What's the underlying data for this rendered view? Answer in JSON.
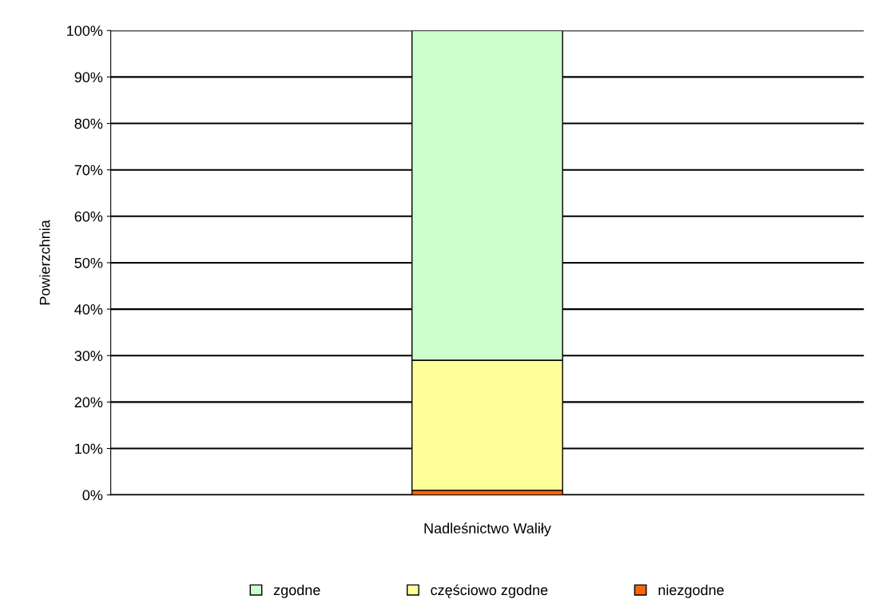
{
  "chart_data": {
    "type": "bar",
    "stacked": true,
    "ylabel": "Powierzchnia",
    "categories": [
      "Nadleśnictwo Waliły"
    ],
    "series": [
      {
        "name": "niezgodne",
        "color": "#ff6600",
        "values": [
          1
        ]
      },
      {
        "name": "częściowo zgodne",
        "color": "#ffff99",
        "values": [
          28
        ]
      },
      {
        "name": "zgodne",
        "color": "#ccffcc",
        "values": [
          71
        ]
      }
    ],
    "ylim": [
      0,
      100
    ],
    "yticks": [
      {
        "value": 0,
        "label": "0%"
      },
      {
        "value": 10,
        "label": "10%"
      },
      {
        "value": 20,
        "label": "20%"
      },
      {
        "value": 30,
        "label": "30%"
      },
      {
        "value": 40,
        "label": "40%"
      },
      {
        "value": 50,
        "label": "50%"
      },
      {
        "value": 60,
        "label": "60%"
      },
      {
        "value": 70,
        "label": "70%"
      },
      {
        "value": 80,
        "label": "80%"
      },
      {
        "value": 90,
        "label": "90%"
      },
      {
        "value": 100,
        "label": "100%"
      }
    ],
    "grid": "y",
    "legend": "bottom"
  }
}
